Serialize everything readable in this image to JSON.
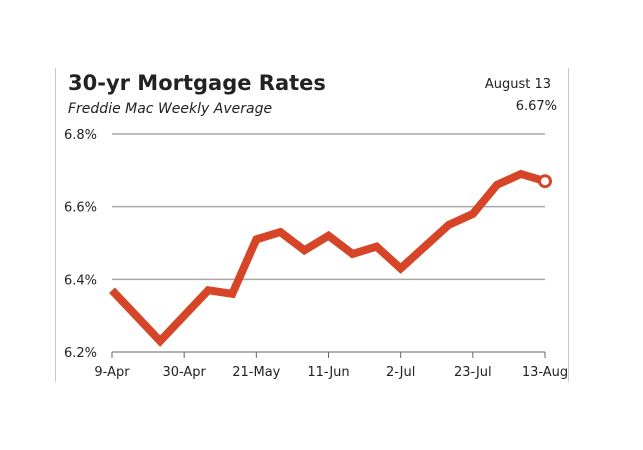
{
  "chart_data": {
    "type": "line",
    "title": "30-yr Mortgage Rates",
    "subtitle": "Freddie Mac Weekly Average",
    "callout": {
      "date": "August 13",
      "value": "6.67%"
    },
    "x_tick_labels": [
      "9-Apr",
      "30-Apr",
      "21-May",
      "11-Jun",
      "2-Jul",
      "23-Jul",
      "13-Aug"
    ],
    "y_tick_labels": [
      "6.2%",
      "6.4%",
      "6.6%",
      "6.8%"
    ],
    "y_ticks": [
      6.2,
      6.4,
      6.6,
      6.8
    ],
    "ylim": [
      6.2,
      6.8
    ],
    "grid": true,
    "series": [
      {
        "x": [
          "9-Apr",
          "16-Apr",
          "23-Apr",
          "30-Apr",
          "7-May",
          "14-May",
          "21-May",
          "28-May",
          "4-Jun",
          "11-Jun",
          "18-Jun",
          "25-Jun",
          "2-Jul",
          "9-Jul",
          "16-Jul",
          "23-Jul",
          "30-Jul",
          "6-Aug",
          "13-Aug"
        ],
        "values": [
          6.37,
          6.3,
          6.23,
          6.3,
          6.37,
          6.36,
          6.51,
          6.53,
          6.48,
          6.52,
          6.47,
          6.49,
          6.43,
          6.49,
          6.55,
          6.58,
          6.66,
          6.69,
          6.67
        ]
      }
    ],
    "colors": {
      "line": "#d64527",
      "marker_fill": "#ffffff",
      "grid": "#a9a9a9",
      "axis": "#666666",
      "text": "#222222"
    }
  }
}
